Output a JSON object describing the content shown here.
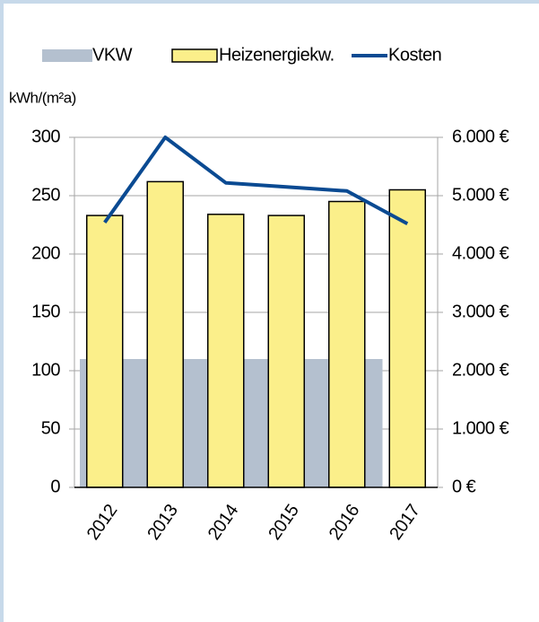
{
  "chart_data": {
    "type": "bar",
    "y_label": "kWh/(m²a)",
    "categories": [
      "2012",
      "2013",
      "2014",
      "2015",
      "2016",
      "2017"
    ],
    "series": [
      {
        "name": "VKW",
        "type": "bar",
        "color": "#b4c0cf",
        "values": [
          110,
          110,
          110,
          110,
          110,
          null
        ]
      },
      {
        "name": "Heizenergiekw.",
        "type": "bar",
        "color": "#fbef8a",
        "values": [
          233,
          262,
          234,
          233,
          245,
          255
        ]
      },
      {
        "name": "Kosten",
        "type": "line",
        "axis": "y2",
        "color": "#0a4a92",
        "values": [
          4540,
          6000,
          5220,
          5150,
          5080,
          4520
        ]
      }
    ],
    "ylim": [
      0,
      300
    ],
    "yticks": [
      0,
      50,
      100,
      150,
      200,
      250,
      300
    ],
    "y2lim": [
      0,
      6000
    ],
    "y2ticks": [
      {
        "value": 0,
        "label": "0 €"
      },
      {
        "value": 1000,
        "label": "1.000 €"
      },
      {
        "value": 2000,
        "label": "2.000 €"
      },
      {
        "value": 3000,
        "label": "3.000 €"
      },
      {
        "value": 4000,
        "label": "4.000 €"
      },
      {
        "value": 5000,
        "label": "5.000 €"
      },
      {
        "value": 6000,
        "label": "6.000 €"
      }
    ],
    "grid": true,
    "legend": "top"
  }
}
